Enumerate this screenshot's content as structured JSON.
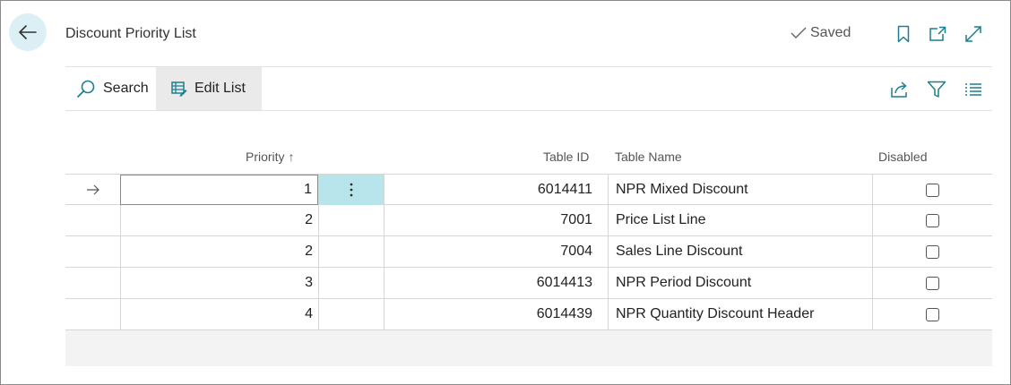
{
  "header": {
    "title": "Discount Priority List",
    "saved_label": "Saved"
  },
  "toolbar": {
    "search_label": "Search",
    "edit_list_label": "Edit List"
  },
  "columns": {
    "priority": "Priority",
    "priority_sort_glyph": "↑",
    "table_id": "Table ID",
    "table_name": "Table Name",
    "disabled": "Disabled"
  },
  "rows": [
    {
      "priority": "1",
      "table_id": "6014411",
      "table_name": "NPR Mixed Discount",
      "disabled": false,
      "current": true
    },
    {
      "priority": "2",
      "table_id": "7001",
      "table_name": "Price List Line",
      "disabled": false,
      "current": false
    },
    {
      "priority": "2",
      "table_id": "7004",
      "table_name": "Sales Line Discount",
      "disabled": false,
      "current": false
    },
    {
      "priority": "3",
      "table_id": "6014413",
      "table_name": "NPR Period Discount",
      "disabled": false,
      "current": false
    },
    {
      "priority": "4",
      "table_id": "6014439",
      "table_name": "NPR Quantity Discount Header",
      "disabled": false,
      "current": false
    }
  ],
  "icons": {
    "back": "arrow-left-icon",
    "saved": "checkmark-icon",
    "bookmark": "bookmark-icon",
    "open_new": "open-in-new-window-icon",
    "expand": "expand-icon",
    "search": "search-icon",
    "edit_list": "edit-list-icon",
    "share": "share-icon",
    "filter": "filter-icon",
    "list": "list-icon",
    "row_pointer": "arrow-right-icon",
    "row_menu": "more-vertical-icon"
  },
  "colors": {
    "accent": "#1a7f8e",
    "back_button_bg": "#dbeff5",
    "active_cell_bg": "#b8e5ec",
    "edit_list_bg": "#eaeaea"
  }
}
